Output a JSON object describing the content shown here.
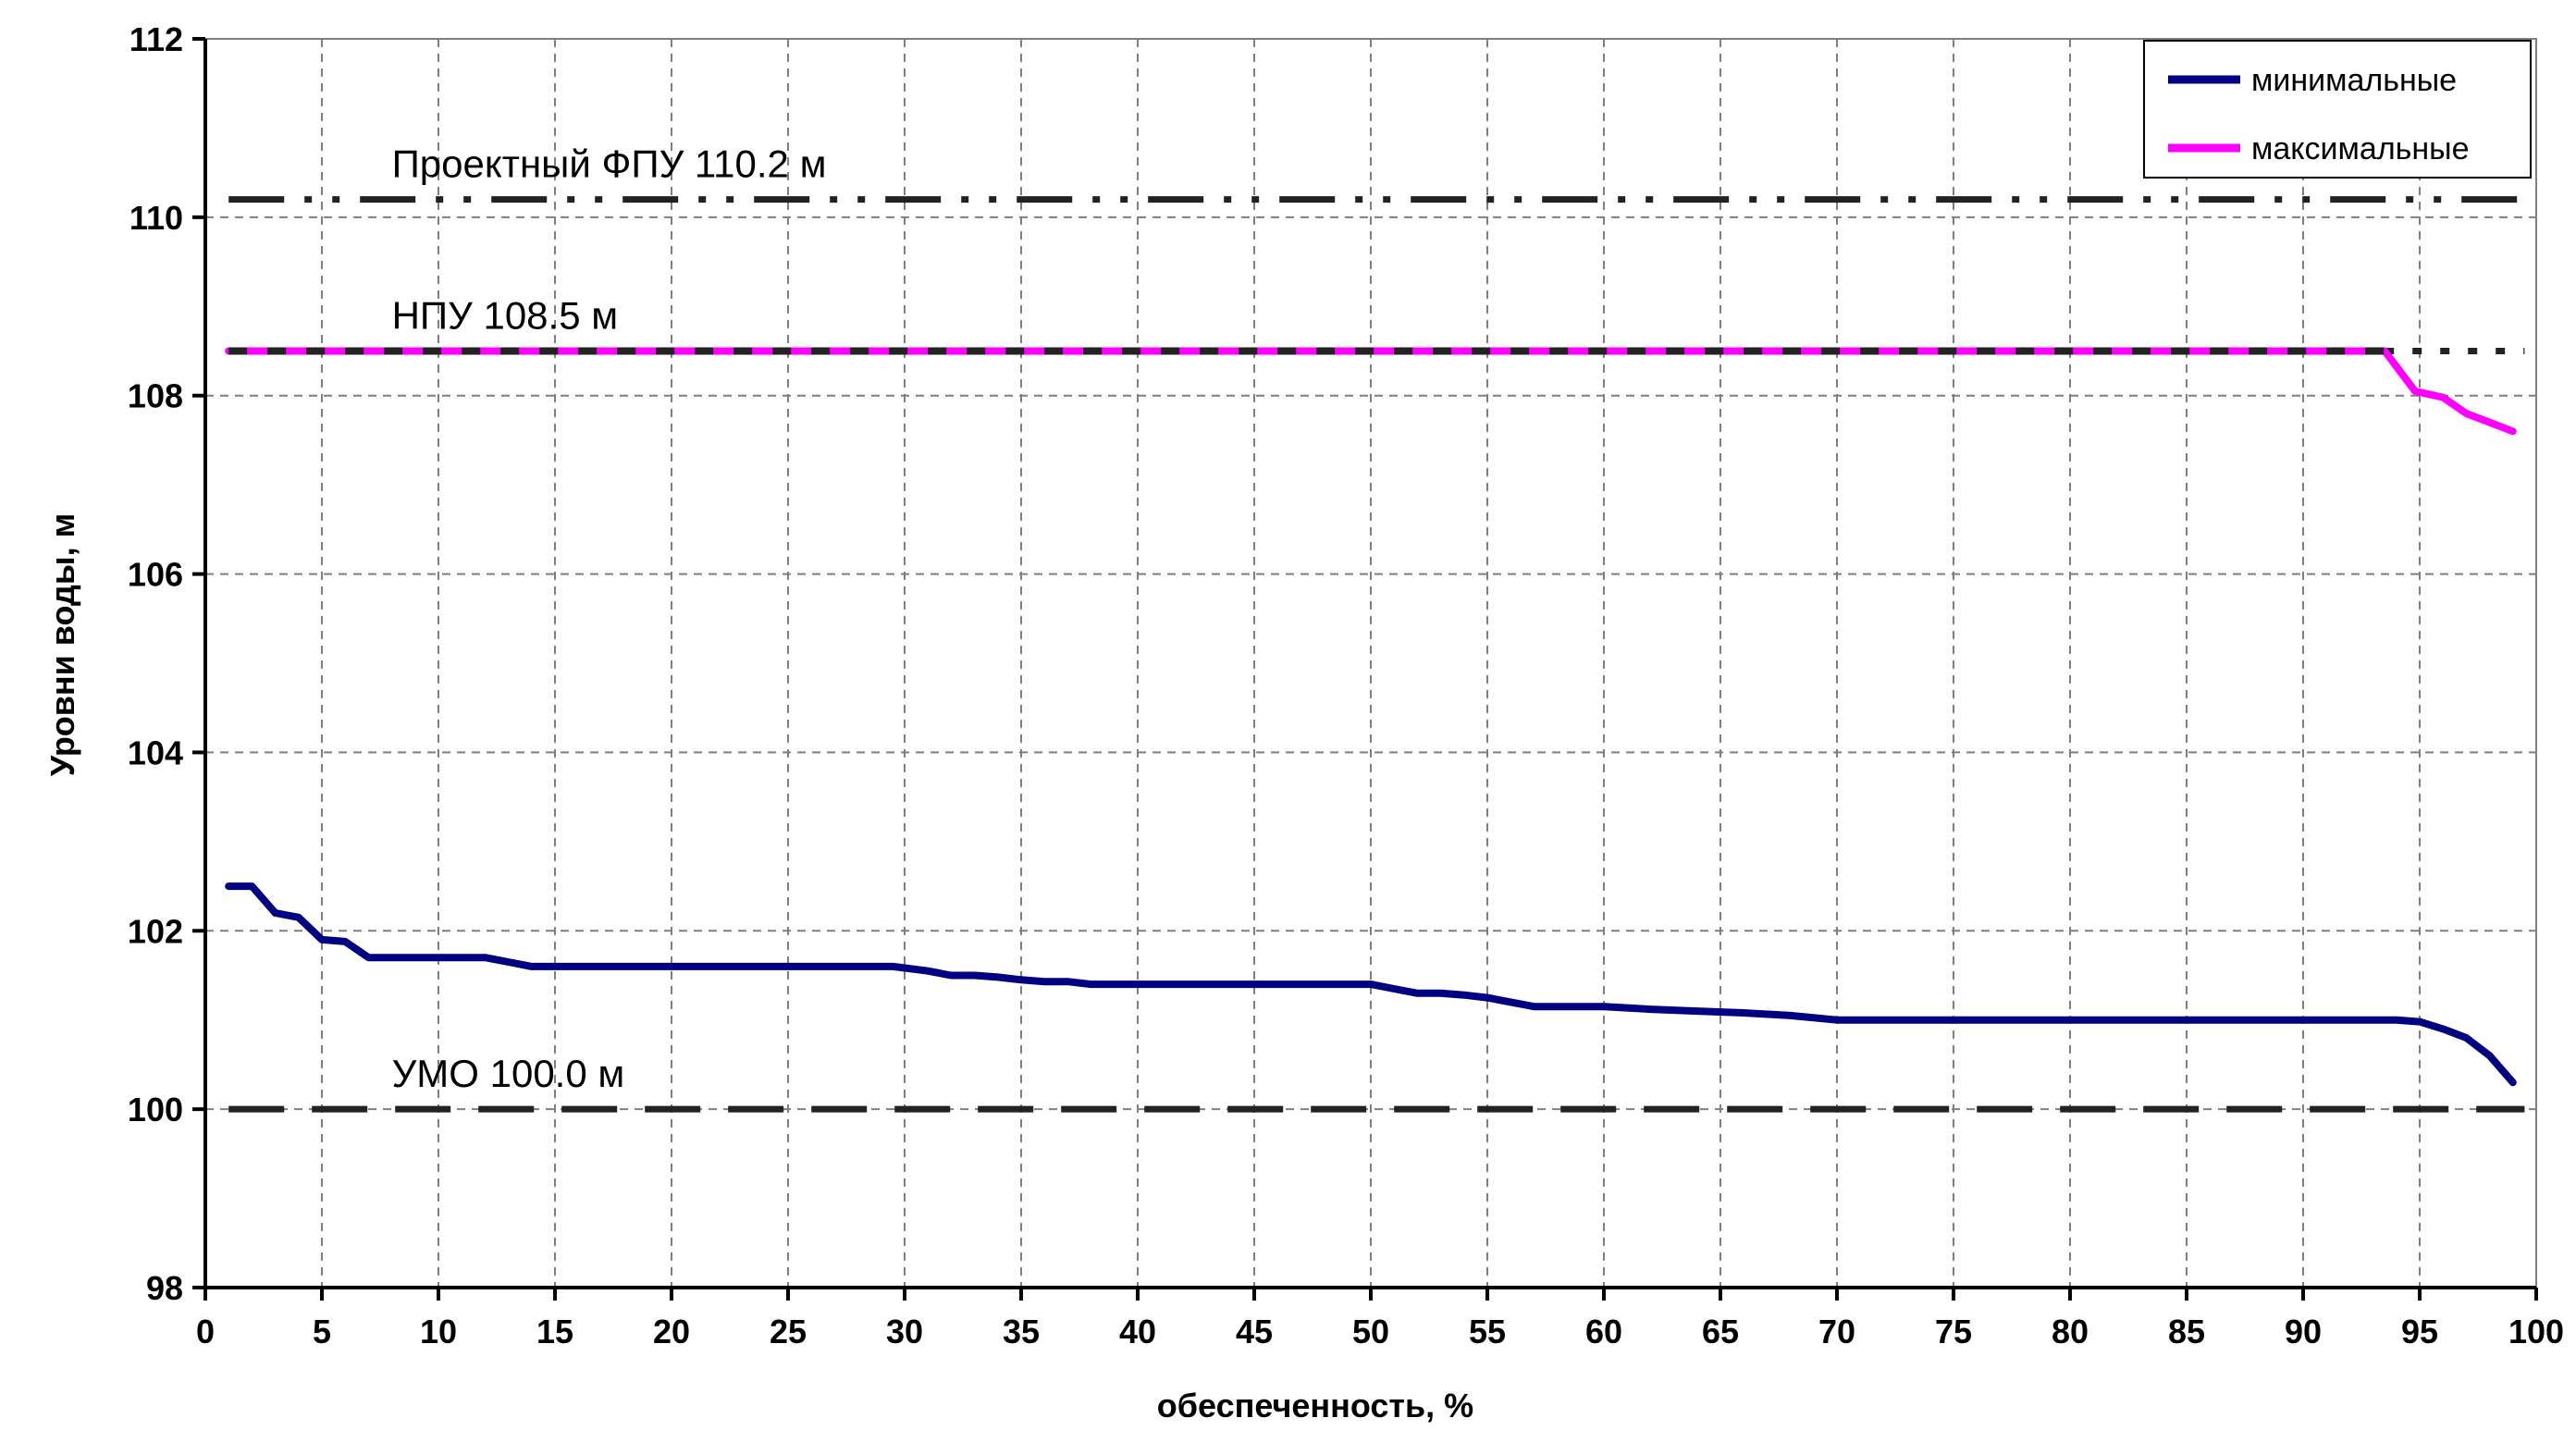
{
  "chart_data": {
    "type": "line",
    "title": "",
    "xlabel": "обеспеченность, %",
    "ylabel": "Уровни воды, м",
    "xlim": [
      0,
      100
    ],
    "ylim": [
      98,
      112
    ],
    "xticks": [
      "0",
      "5",
      "10",
      "15",
      "20",
      "25",
      "30",
      "35",
      "40",
      "45",
      "50",
      "55",
      "60",
      "65",
      "70",
      "75",
      "80",
      "85",
      "90",
      "95",
      "100"
    ],
    "yticks": [
      "98",
      "100",
      "102",
      "104",
      "106",
      "108",
      "110",
      "112"
    ],
    "grid": true,
    "legend_position": "top-right",
    "series": [
      {
        "name": "минимальные",
        "color": "#000080",
        "x": [
          1,
          2,
          3,
          4,
          5,
          6,
          7,
          8,
          9,
          10,
          11,
          12,
          13,
          14,
          15,
          20,
          25,
          29.5,
          31,
          32,
          33,
          34,
          35,
          36,
          37,
          38,
          40,
          45,
          50,
          51,
          52,
          53,
          54,
          55,
          56,
          57,
          58,
          60,
          62,
          64,
          66,
          68,
          70,
          75,
          80,
          85,
          90,
          94,
          95,
          96,
          97,
          98,
          99
        ],
        "y": [
          102.5,
          102.5,
          102.2,
          102.15,
          101.9,
          101.88,
          101.7,
          101.7,
          101.7,
          101.7,
          101.7,
          101.7,
          101.65,
          101.6,
          101.6,
          101.6,
          101.6,
          101.6,
          101.55,
          101.5,
          101.5,
          101.48,
          101.45,
          101.43,
          101.43,
          101.4,
          101.4,
          101.4,
          101.4,
          101.35,
          101.3,
          101.3,
          101.28,
          101.25,
          101.2,
          101.15,
          101.15,
          101.15,
          101.12,
          101.1,
          101.08,
          101.05,
          101.0,
          101.0,
          101.0,
          101.0,
          101.0,
          101.0,
          100.98,
          100.9,
          100.8,
          100.6,
          100.3
        ]
      },
      {
        "name": "максимальные",
        "color": "#FF00FF",
        "x": [
          1,
          10,
          20,
          30,
          40,
          50,
          60,
          70,
          80,
          90,
          93.5,
          94.8,
          96,
          97,
          98,
          99
        ],
        "y": [
          108.5,
          108.5,
          108.5,
          108.5,
          108.5,
          108.5,
          108.5,
          108.5,
          108.5,
          108.5,
          108.5,
          108.05,
          107.98,
          107.8,
          107.7,
          107.6
        ]
      }
    ],
    "reference_lines": [
      {
        "label": "Проектный ФПУ 110.2 м",
        "y": 110.2,
        "x_start": 1,
        "x_end": 99.5,
        "style": "dash-dot"
      },
      {
        "label": "НПУ 108.5 м",
        "y": 108.5,
        "x_start": 1,
        "x_end": 99.5,
        "style": "solid-dotted-end"
      },
      {
        "label": "УМО 100.0 м",
        "y": 100.0,
        "x_start": 1,
        "x_end": 99.5,
        "style": "dashed"
      }
    ]
  }
}
